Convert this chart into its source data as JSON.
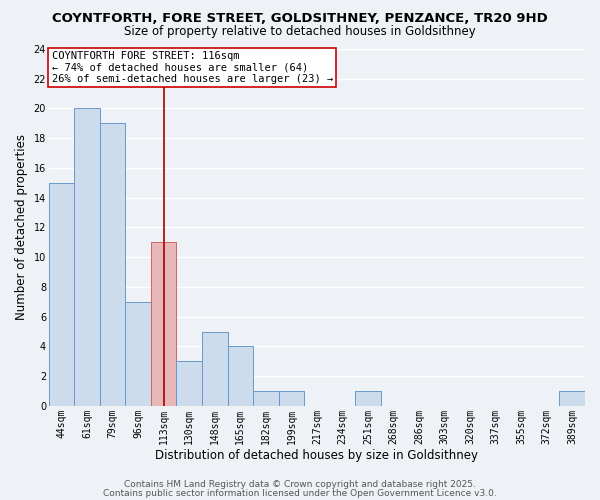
{
  "title": "COYNTFORTH, FORE STREET, GOLDSITHNEY, PENZANCE, TR20 9HD",
  "subtitle": "Size of property relative to detached houses in Goldsithney",
  "xlabel": "Distribution of detached houses by size in Goldsithney",
  "ylabel": "Number of detached properties",
  "bar_labels": [
    "44sqm",
    "61sqm",
    "79sqm",
    "96sqm",
    "113sqm",
    "130sqm",
    "148sqm",
    "165sqm",
    "182sqm",
    "199sqm",
    "217sqm",
    "234sqm",
    "251sqm",
    "268sqm",
    "286sqm",
    "303sqm",
    "320sqm",
    "337sqm",
    "355sqm",
    "372sqm",
    "389sqm"
  ],
  "bar_values": [
    15,
    20,
    19,
    7,
    11,
    3,
    5,
    4,
    1,
    1,
    0,
    0,
    1,
    0,
    0,
    0,
    0,
    0,
    0,
    0,
    1
  ],
  "bar_color": "#ccdcec",
  "bar_edge_color": "#6699cc",
  "highlight_bar_index": 4,
  "highlight_bar_color": "#e8b8b8",
  "highlight_bar_edge_color": "#cc6666",
  "vline_x": 4,
  "vline_color": "#aa0000",
  "annotation_title": "COYNTFORTH FORE STREET: 116sqm",
  "annotation_line1": "← 74% of detached houses are smaller (64)",
  "annotation_line2": "26% of semi-detached houses are larger (23) →",
  "annotation_box_color": "#ffffff",
  "annotation_box_edge_color": "#cc0000",
  "ylim": [
    0,
    24
  ],
  "yticks": [
    0,
    2,
    4,
    6,
    8,
    10,
    12,
    14,
    16,
    18,
    20,
    22,
    24
  ],
  "footnote1": "Contains HM Land Registry data © Crown copyright and database right 2025.",
  "footnote2": "Contains public sector information licensed under the Open Government Licence v3.0.",
  "background_color": "#eef2f7",
  "plot_background_color": "#eef2f7",
  "grid_color": "#ffffff",
  "title_fontsize": 9.5,
  "subtitle_fontsize": 8.5,
  "axis_label_fontsize": 8.5,
  "tick_fontsize": 7,
  "annotation_fontsize": 7.5,
  "footnote_fontsize": 6.5
}
